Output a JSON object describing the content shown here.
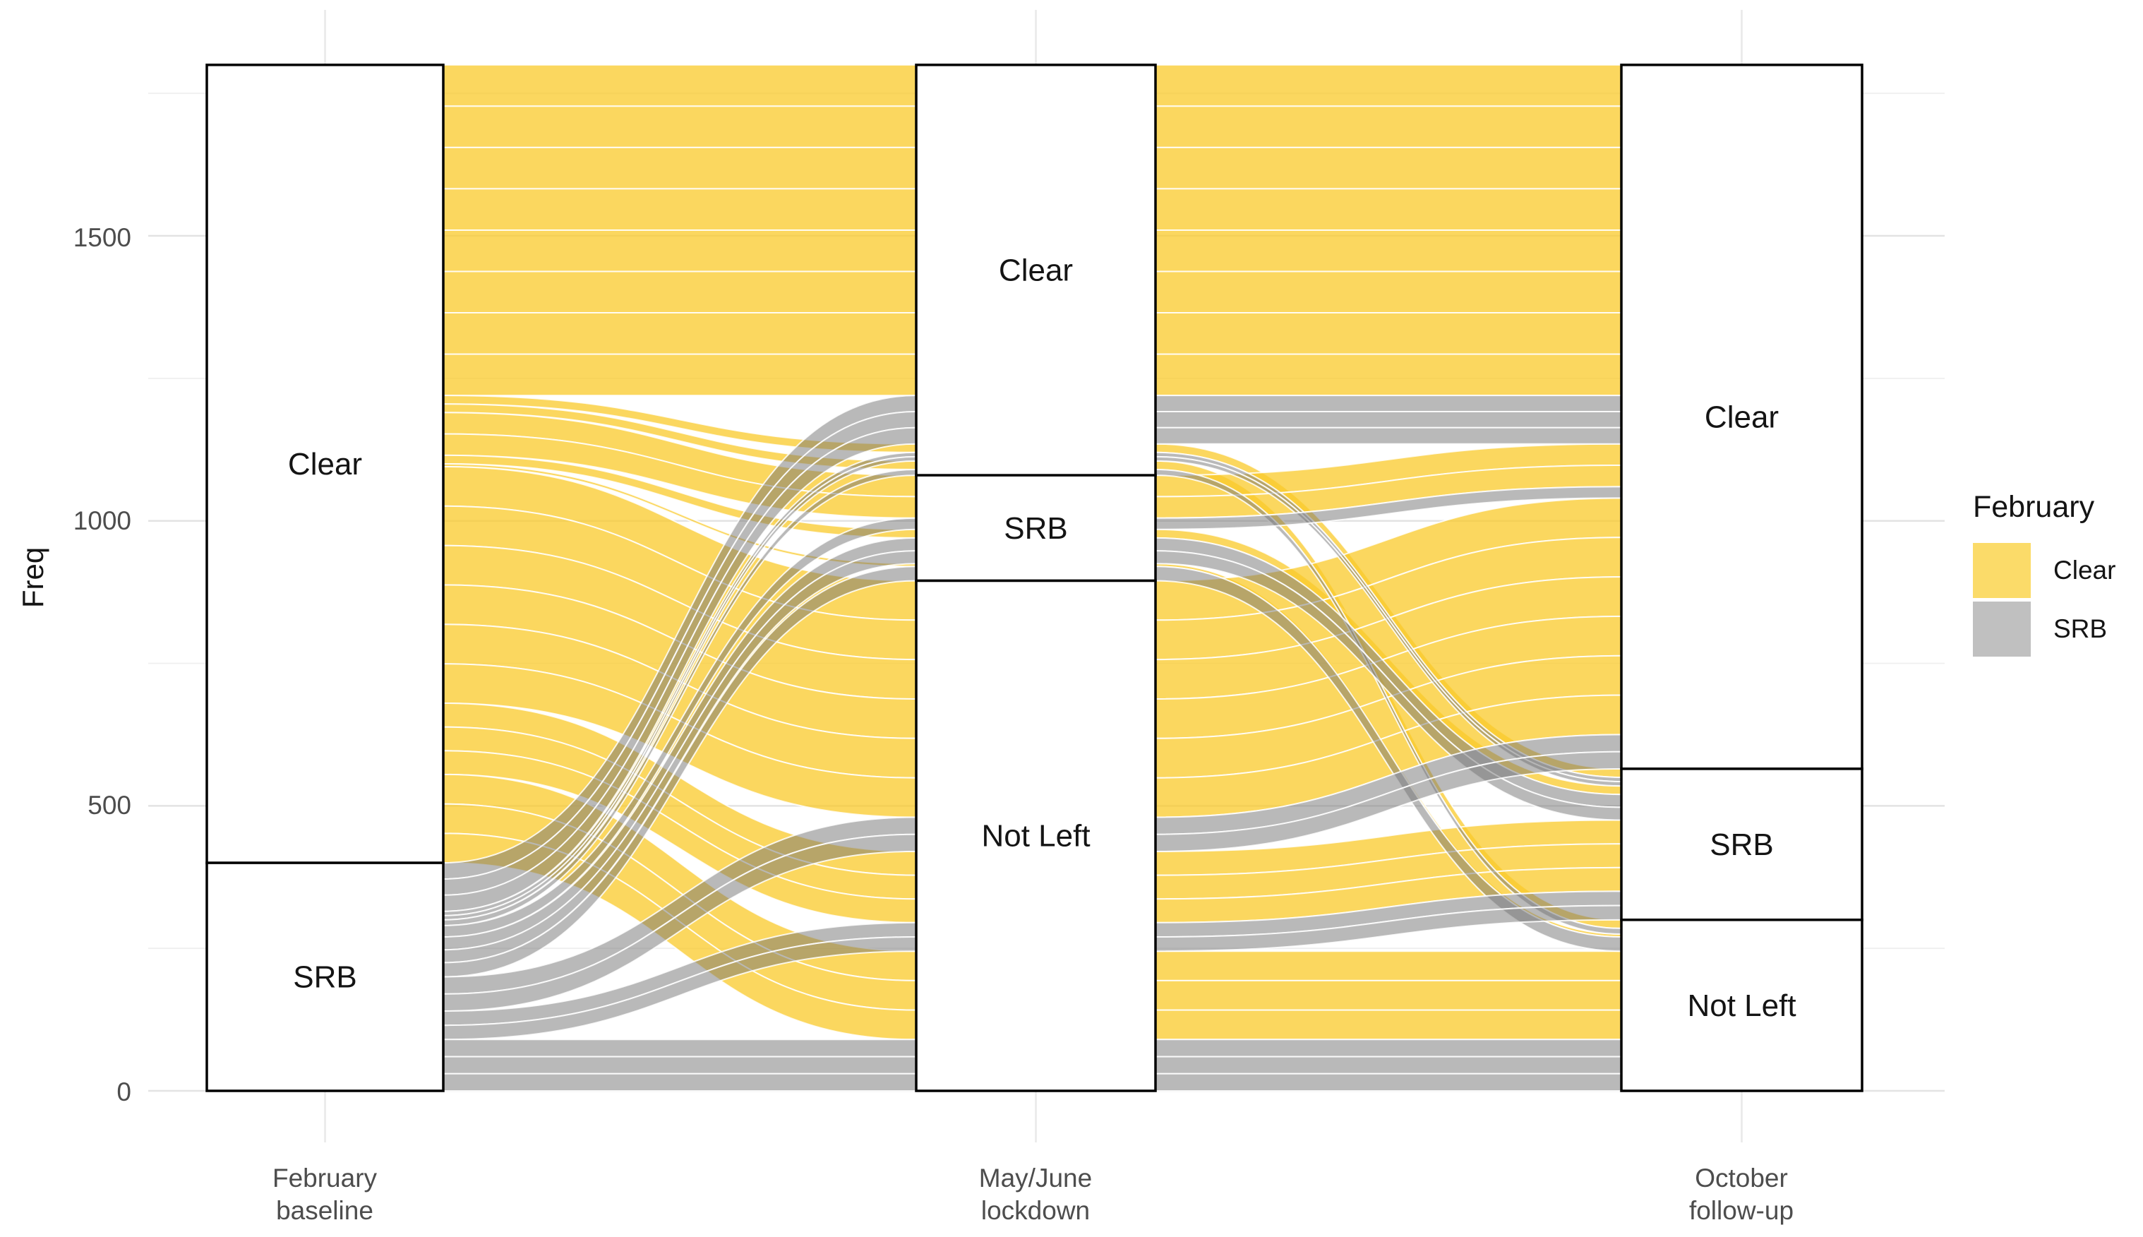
{
  "figure": {
    "y_axis": {
      "title": "Freq",
      "ticks": [
        "0",
        "500",
        "1000",
        "1500"
      ],
      "tick_values": [
        0,
        500,
        1000,
        1500
      ]
    },
    "x_axis": {
      "labels": [
        [
          "February",
          "baseline"
        ],
        [
          "May/June",
          "lockdown"
        ],
        [
          "October",
          "follow-up"
        ]
      ]
    },
    "legend": {
      "title": "February",
      "entries": [
        {
          "label": "Clear",
          "color": "#FBDB69"
        },
        {
          "label": "SRB",
          "color": "#C0C0C0"
        }
      ]
    }
  },
  "chart_data": {
    "type": "alluvial",
    "ylabel": "Freq",
    "ylim": [
      0,
      1800
    ],
    "grid": {
      "major": [
        0,
        500,
        1000,
        1500
      ],
      "minor": [
        250,
        750,
        1250,
        1750
      ]
    },
    "axes": [
      "February baseline",
      "May/June lockdown",
      "October follow-up"
    ],
    "fill_legend_title": "February",
    "fill_colors": {
      "Clear": "#FBDB69",
      "SRB": "#C0C0C0"
    },
    "strata": {
      "february_baseline": [
        {
          "label": "Clear",
          "value": 1400
        },
        {
          "label": "SRB",
          "value": 400
        }
      ],
      "may_june_lockdown": [
        {
          "label": "Clear",
          "value": 720
        },
        {
          "label": "SRB",
          "value": 185
        },
        {
          "label": "Not Left",
          "value": 895
        }
      ],
      "october_follow_up": [
        {
          "label": "Clear",
          "value": 1235
        },
        {
          "label": "SRB",
          "value": 265
        },
        {
          "label": "Not Left",
          "value": 300
        }
      ]
    },
    "total": 1800,
    "flows": [
      {
        "february": "Clear",
        "may_june": "Clear",
        "october": "Clear",
        "value": 580
      },
      {
        "february": "Clear",
        "may_june": "Clear",
        "october": "SRB",
        "value": 15
      },
      {
        "february": "Clear",
        "may_june": "Clear",
        "october": "Not Left",
        "value": 15
      },
      {
        "february": "Clear",
        "may_june": "SRB",
        "october": "Clear",
        "value": 75
      },
      {
        "february": "Clear",
        "may_june": "SRB",
        "october": "SRB",
        "value": 15
      },
      {
        "february": "Clear",
        "may_june": "SRB",
        "october": "Not Left",
        "value": 5
      },
      {
        "february": "Clear",
        "may_june": "Not Left",
        "october": "Clear",
        "value": 415
      },
      {
        "february": "Clear",
        "may_june": "Not Left",
        "october": "SRB",
        "value": 125
      },
      {
        "february": "Clear",
        "may_june": "Not Left",
        "october": "Not Left",
        "value": 155
      },
      {
        "february": "SRB",
        "may_june": "Clear",
        "october": "Clear",
        "value": 85
      },
      {
        "february": "SRB",
        "may_june": "Clear",
        "october": "SRB",
        "value": 15
      },
      {
        "february": "SRB",
        "may_june": "Clear",
        "october": "Not Left",
        "value": 10
      },
      {
        "february": "SRB",
        "may_june": "SRB",
        "october": "Clear",
        "value": 20
      },
      {
        "february": "SRB",
        "may_june": "SRB",
        "october": "SRB",
        "value": 45
      },
      {
        "february": "SRB",
        "may_june": "SRB",
        "october": "Not Left",
        "value": 25
      },
      {
        "february": "SRB",
        "may_june": "Not Left",
        "october": "Clear",
        "value": 60
      },
      {
        "february": "SRB",
        "may_june": "Not Left",
        "october": "SRB",
        "value": 50
      },
      {
        "february": "SRB",
        "may_june": "Not Left",
        "october": "Not Left",
        "value": 90
      }
    ]
  }
}
